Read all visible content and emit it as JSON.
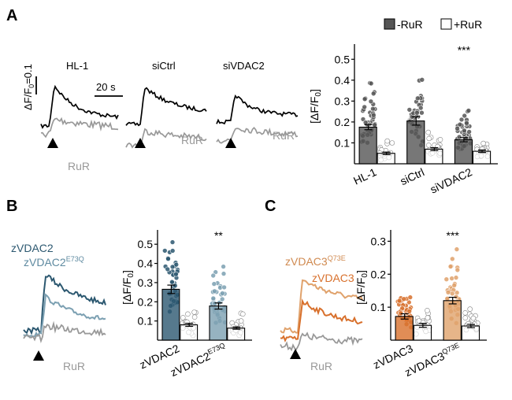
{
  "panels": {
    "a": {
      "letter": "A",
      "scale_label": "ΔF/F",
      "scale_sub": "0",
      "scale_value": "=0.1",
      "time_label": "20 s",
      "trace_titles": [
        "HL-1",
        "siCtrl",
        "siVDAC2"
      ],
      "trace_rur_label": "RuR"
    },
    "b": {
      "letter": "B",
      "trace_label_1": "zVDAC2",
      "trace_label_2_base": "zVDAC2",
      "trace_label_2_sup": "E73Q",
      "trace_rur_label": "RuR"
    },
    "c": {
      "letter": "C",
      "trace_label_1_base": "zVDAC3",
      "trace_label_1_sup": "Q73E",
      "trace_label_2": "zVDAC3",
      "trace_rur_label": "RuR"
    }
  },
  "chart_data": [
    {
      "id": "A",
      "type": "bar",
      "categories": [
        "HL-1",
        "siCtrl",
        "siVDAC2"
      ],
      "series": [
        {
          "name": "-RuR",
          "values": [
            0.175,
            0.205,
            0.115
          ],
          "errors": [
            0.012,
            0.02,
            0.01
          ],
          "color": "#555555"
        },
        {
          "name": "+RuR",
          "values": [
            0.05,
            0.07,
            0.06
          ],
          "errors": [
            0.006,
            0.007,
            0.006
          ],
          "color": "#ffffff"
        }
      ],
      "ylabel_base": "[ΔF/F",
      "ylabel_sub": "0",
      "ylabel_end": "]",
      "ylim": [
        0,
        0.55
      ],
      "yticks": [
        "0.1",
        "0.2",
        "0.3",
        "0.4",
        "0.5"
      ],
      "legend_placement": "top",
      "significance": [
        {
          "category": 2,
          "series": 0,
          "label": "***"
        }
      ]
    },
    {
      "id": "B",
      "type": "bar",
      "categories": [
        "zVDAC2",
        "zVDAC2"
      ],
      "category_sups": [
        "",
        "E73Q"
      ],
      "series": [
        {
          "name": "-RuR",
          "values": [
            0.265,
            0.178
          ],
          "errors": [
            0.022,
            0.016
          ],
          "colors": [
            "#2c5870",
            "#7ca0b2"
          ]
        },
        {
          "name": "+RuR",
          "values": [
            0.08,
            0.063
          ],
          "errors": [
            0.008,
            0.006
          ],
          "color": "#ffffff"
        }
      ],
      "ylabel_base": "[ΔF/F",
      "ylabel_sub": "0",
      "ylabel_end": "]",
      "ylim": [
        0,
        0.55
      ],
      "yticks": [
        "0.1",
        "0.2",
        "0.3",
        "0.4",
        "0.5"
      ],
      "significance": [
        {
          "category": 1,
          "series": 0,
          "label": "**"
        }
      ]
    },
    {
      "id": "C",
      "type": "bar",
      "categories": [
        "zVDAC3",
        "zVDAC3"
      ],
      "category_sups": [
        "",
        "Q73E"
      ],
      "series": [
        {
          "name": "-RuR",
          "values": [
            0.072,
            0.12
          ],
          "errors": [
            0.008,
            0.01
          ],
          "colors": [
            "#d8702c",
            "#e0a26c"
          ]
        },
        {
          "name": "+RuR",
          "values": [
            0.045,
            0.043
          ],
          "errors": [
            0.006,
            0.005
          ],
          "color": "#ffffff"
        }
      ],
      "ylabel_base": "[ΔF/F",
      "ylabel_sub": "0",
      "ylabel_end": "]",
      "ylim": [
        0,
        0.32
      ],
      "yticks": [
        "0.1",
        "0.2",
        "0.3"
      ],
      "significance": [
        {
          "category": 1,
          "series": 0,
          "label": "***"
        }
      ]
    }
  ],
  "colors": {
    "dark_gray": "#555555",
    "rur_trace": "#999999",
    "zvdac2_dark": "#2c5870",
    "zvdac2_light": "#7ca0b2",
    "zvdac3_dark": "#d8702c",
    "zvdac3_light": "#e0a26c"
  }
}
